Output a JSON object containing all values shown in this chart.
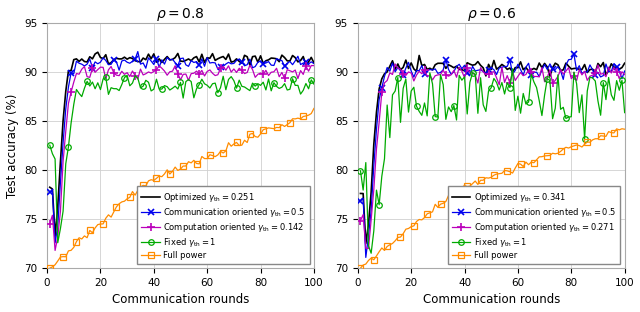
{
  "title_left": "$\\rho = 0.8$",
  "title_right": "$\\rho = 0.6$",
  "xlabel": "Communication rounds",
  "ylabel": "Test accuracy (%)",
  "ylim": [
    70,
    95
  ],
  "yticks": [
    70,
    75,
    80,
    85,
    90,
    95
  ],
  "xlim": [
    1,
    100
  ],
  "xticks": [
    0,
    20,
    40,
    60,
    80,
    100
  ],
  "figsize": [
    6.4,
    3.12
  ],
  "dpi": 100,
  "left": {
    "legend_labels": [
      "Optimized $\\gamma_{\\mathrm{th}} = 0.251$",
      "Communication oriented $\\gamma_{\\mathrm{th}} = 0.5$",
      "Computation oriented $\\gamma_{\\mathrm{th}} = 0.142$",
      "Fixed $\\gamma_{\\mathrm{th}} = 1$",
      "Full power"
    ]
  },
  "right": {
    "legend_labels": [
      "Optimized $\\gamma_{\\mathrm{th}} = 0.341$",
      "Communication oriented $\\gamma_{\\mathrm{th}} = 0.5$",
      "Computation oriented $\\gamma_{\\mathrm{th}} = 0.271$",
      "Fixed $\\gamma_{\\mathrm{th}} = 1$",
      "Full power"
    ]
  },
  "colors": [
    "#000000",
    "#0000ee",
    "#bb00bb",
    "#00aa00",
    "#ff8c00"
  ],
  "line_width": 0.9,
  "grid_color": "#d0d0d0",
  "background": "#ffffff"
}
